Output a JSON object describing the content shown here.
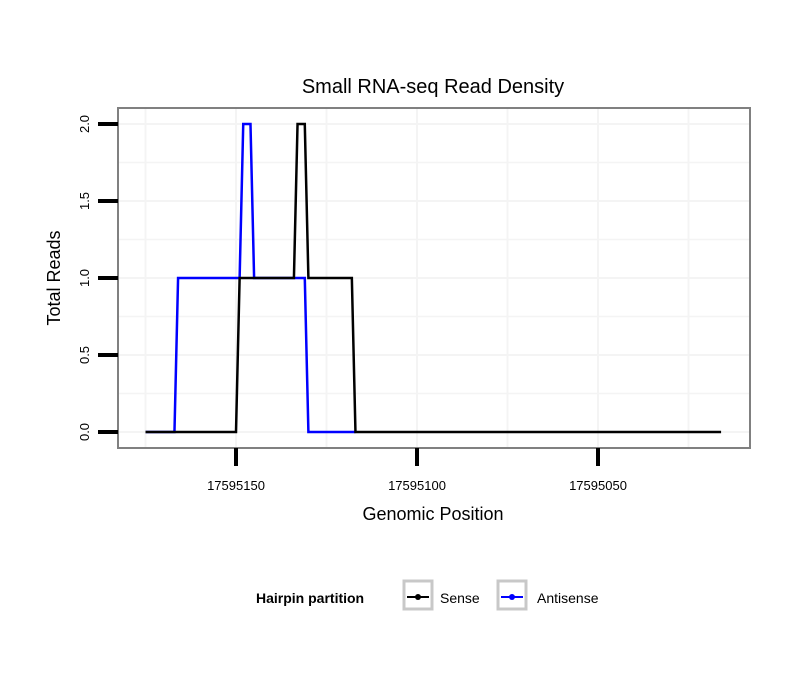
{
  "chart_data": {
    "type": "line",
    "title": "Small RNA-seq Read Density",
    "xlabel": "Genomic Position",
    "ylabel": "Total Reads",
    "xlim": [
      17595182,
      17595008
    ],
    "x_reversed": true,
    "ylim": [
      -0.1,
      2.1
    ],
    "xticks": [
      17595150,
      17595100,
      17595050
    ],
    "xtick_labels": [
      "17595150",
      "17595100",
      "17595050"
    ],
    "yticks": [
      0,
      0.5,
      1,
      1.5,
      2
    ],
    "ytick_labels": [
      "0.0",
      "0.5",
      "1.0",
      "1.5",
      "2.0"
    ],
    "grid": true,
    "legend": {
      "title": "Hairpin partition",
      "position": "bottom"
    },
    "series": [
      {
        "name": "Sense",
        "color": "#000000",
        "x": [
          17595175,
          17595150,
          17595149,
          17595134,
          17595133,
          17595131,
          17595130,
          17595118,
          17595117,
          17595016
        ],
        "y": [
          0,
          0,
          1,
          1,
          2,
          2,
          1,
          1,
          0,
          0
        ]
      },
      {
        "name": "Antisense",
        "color": "#0000ff",
        "x": [
          17595175,
          17595167,
          17595166,
          17595149,
          17595148,
          17595146,
          17595145,
          17595131,
          17595130,
          17595117
        ],
        "y": [
          0,
          0,
          1,
          1,
          2,
          2,
          1,
          1,
          0,
          0
        ]
      }
    ]
  }
}
